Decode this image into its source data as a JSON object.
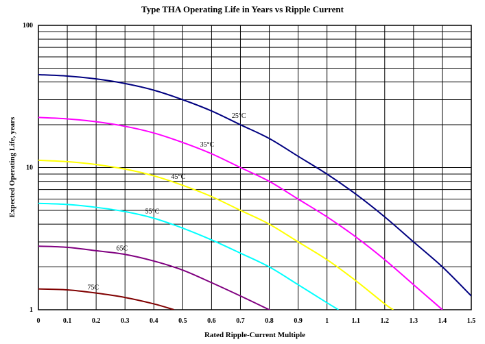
{
  "chart_data": {
    "type": "line",
    "title": "Type THA Operating Life in Years vs Ripple Current",
    "xlabel": "Rated Ripple-Current Multiple",
    "ylabel": "Expected Operating Life, years",
    "xlim": [
      0,
      1.5
    ],
    "ylim": [
      1,
      100
    ],
    "yscale": "log",
    "grid": true,
    "x_ticks": [
      "0",
      "0.1",
      "0.2",
      "0.3",
      "0.4",
      "0.5",
      "0.6",
      "0.7",
      "0.8",
      "0.9",
      "1",
      "1.1",
      "1.2",
      "1.3",
      "1.4",
      "1.5"
    ],
    "y_ticks": [
      "1",
      "10",
      "100"
    ],
    "series": [
      {
        "name": "25°C",
        "color": "#000080",
        "x": [
          0,
          0.1,
          0.2,
          0.3,
          0.4,
          0.5,
          0.6,
          0.7,
          0.8,
          0.9,
          1.0,
          1.1,
          1.2,
          1.3,
          1.4,
          1.5
        ],
        "y": [
          45,
          44,
          42,
          39,
          35,
          30,
          25,
          20,
          16,
          12,
          9,
          6.5,
          4.5,
          3.0,
          2.0,
          1.25
        ]
      },
      {
        "name": "35°C",
        "color": "#ff00ff",
        "x": [
          0,
          0.1,
          0.2,
          0.3,
          0.4,
          0.5,
          0.6,
          0.7,
          0.8,
          0.9,
          1.0,
          1.1,
          1.2,
          1.3,
          1.4
        ],
        "y": [
          22.5,
          22,
          21,
          19.5,
          17.5,
          15,
          12.5,
          10,
          8,
          6,
          4.5,
          3.25,
          2.25,
          1.5,
          1.0
        ]
      },
      {
        "name": "45°C",
        "color": "#ffff00",
        "x": [
          0,
          0.1,
          0.2,
          0.3,
          0.4,
          0.5,
          0.6,
          0.7,
          0.8,
          0.9,
          1.0,
          1.1,
          1.2,
          1.23
        ],
        "y": [
          11.25,
          11,
          10.5,
          9.75,
          8.75,
          7.5,
          6.25,
          5.0,
          4.0,
          3.0,
          2.25,
          1.6,
          1.1,
          1.0
        ]
      },
      {
        "name": "55°C",
        "color": "#00ffff",
        "x": [
          0,
          0.1,
          0.2,
          0.3,
          0.4,
          0.5,
          0.6,
          0.7,
          0.8,
          0.9,
          1.0,
          1.04
        ],
        "y": [
          5.6,
          5.5,
          5.25,
          4.9,
          4.4,
          3.75,
          3.1,
          2.5,
          2.0,
          1.5,
          1.12,
          1.0
        ]
      },
      {
        "name": "65C",
        "color": "#800080",
        "x": [
          0,
          0.1,
          0.2,
          0.3,
          0.4,
          0.5,
          0.6,
          0.7,
          0.8,
          0.81
        ],
        "y": [
          2.8,
          2.75,
          2.6,
          2.45,
          2.2,
          1.9,
          1.55,
          1.25,
          1.0,
          0.98
        ]
      },
      {
        "name": "75C",
        "color": "#800000",
        "x": [
          0,
          0.1,
          0.2,
          0.3,
          0.4,
          0.47
        ],
        "y": [
          1.4,
          1.38,
          1.31,
          1.22,
          1.1,
          1.0
        ]
      }
    ],
    "annotations": [
      {
        "text": "25°C",
        "series": "25°C",
        "x": 0.67
      },
      {
        "text": "35°C",
        "series": "35°C",
        "x": 0.56
      },
      {
        "text": "45°C",
        "series": "45°C",
        "x": 0.46
      },
      {
        "text": "55°C",
        "series": "55°C",
        "x": 0.37
      },
      {
        "text": "65C",
        "series": "65C",
        "x": 0.27
      },
      {
        "text": "75C",
        "series": "75C",
        "x": 0.17
      }
    ]
  }
}
